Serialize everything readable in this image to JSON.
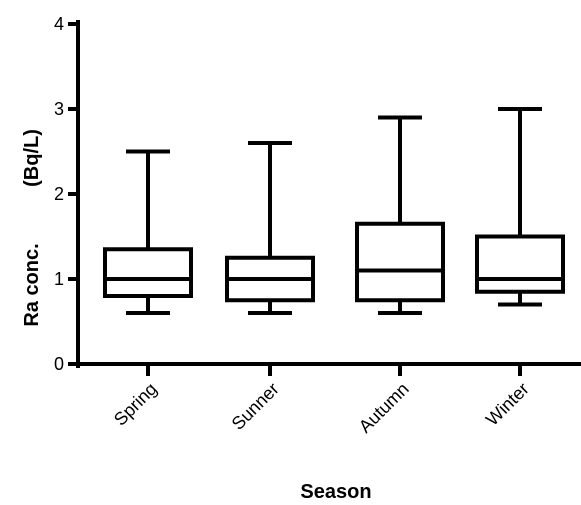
{
  "chart_data": {
    "type": "boxplot",
    "title": "",
    "xlabel": "Season",
    "ylabel_left": "Ra conc.",
    "ylabel_right": "(Bq/L)",
    "ylim": [
      0,
      4
    ],
    "yticks": [
      0,
      1,
      2,
      3,
      4
    ],
    "categories": [
      "Spring",
      "Sunner",
      "Autumn",
      "Winter"
    ],
    "boxes": [
      {
        "category": "Spring",
        "min": 0.6,
        "q1": 0.8,
        "median": 1.0,
        "q3": 1.35,
        "max": 2.5
      },
      {
        "category": "Sunner",
        "min": 0.6,
        "q1": 0.75,
        "median": 1.0,
        "q3": 1.25,
        "max": 2.6
      },
      {
        "category": "Autumn",
        "min": 0.6,
        "q1": 0.75,
        "median": 1.1,
        "q3": 1.65,
        "max": 2.9
      },
      {
        "category": "Winter",
        "min": 0.7,
        "q1": 0.85,
        "median": 1.0,
        "q3": 1.5,
        "max": 3.0
      }
    ],
    "grid": false,
    "legend": "none",
    "colors": {
      "stroke": "#000000",
      "background": "#ffffff"
    }
  }
}
